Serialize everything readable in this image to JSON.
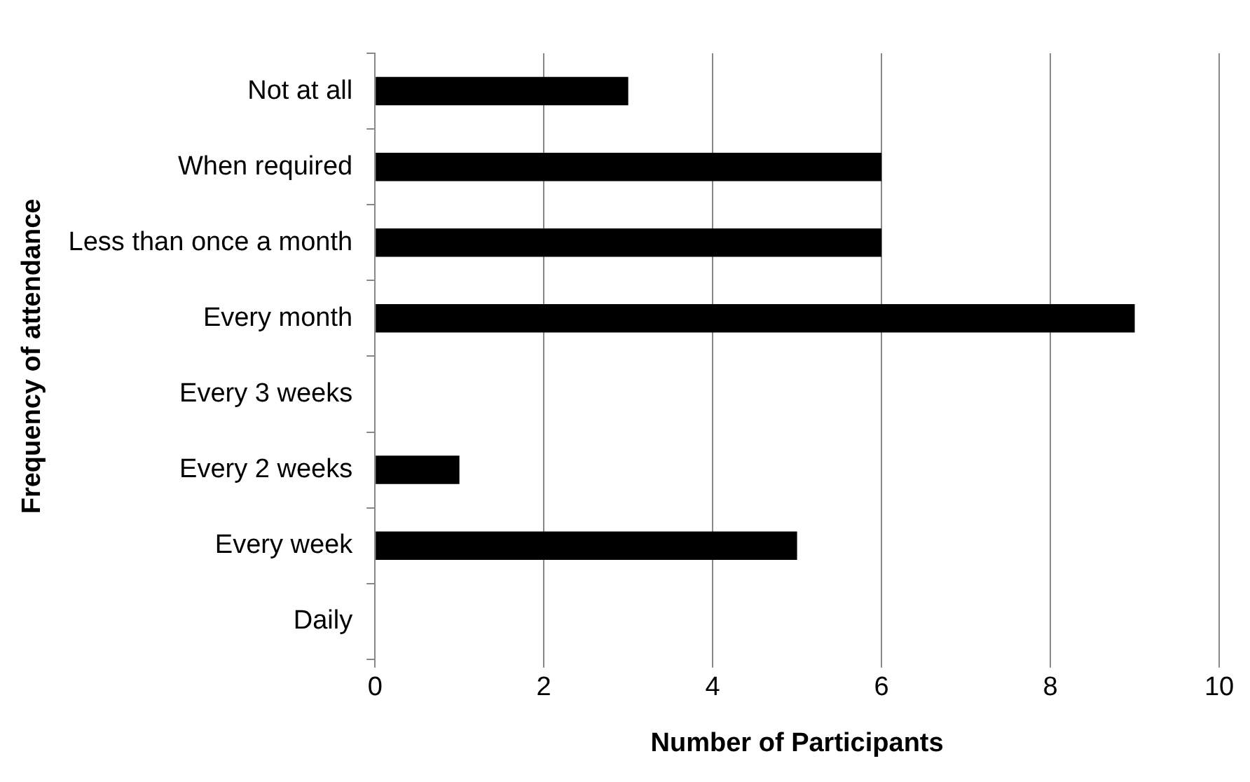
{
  "chart_data": {
    "type": "bar",
    "orientation": "horizontal",
    "xlabel": "Number of Participants",
    "ylabel": "Frequency of attendance",
    "categories": [
      "Not at all",
      "When required",
      "Less than once a month",
      "Every month",
      "Every 3 weeks",
      "Every 2 weeks",
      "Every week",
      "Daily"
    ],
    "values": [
      3,
      6,
      6,
      9,
      0,
      1,
      5,
      0
    ],
    "color": "#000000",
    "xlim": [
      0,
      10
    ],
    "xticks": [
      0,
      2,
      4,
      6,
      8,
      10
    ],
    "grid": "x",
    "legend": false
  }
}
